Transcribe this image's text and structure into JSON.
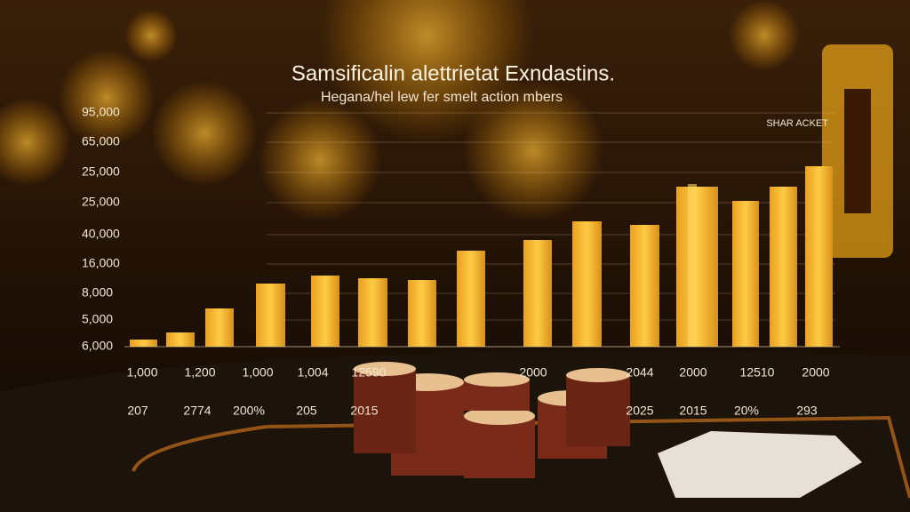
{
  "title": "Samsificalin alettrietat Exndastins.",
  "subtitle": "Hegana/hel lew fer smelt action mbers",
  "legend": "SHAR ACKET",
  "y_labels": [
    "95,000",
    "65,000",
    "25,000",
    "25,000",
    "40,000",
    "16,000",
    "8,000",
    "5,000",
    "6,000"
  ],
  "x_labels_top": [
    "1,000",
    "1,200",
    "1,000",
    "1,004",
    "12590",
    "2000",
    "2044",
    "2000",
    "12510",
    "2000"
  ],
  "x_labels_bottom": [
    "207",
    "2774",
    "200%",
    "205",
    "2015",
    "2025",
    "2015",
    "20%",
    "293"
  ]
}
